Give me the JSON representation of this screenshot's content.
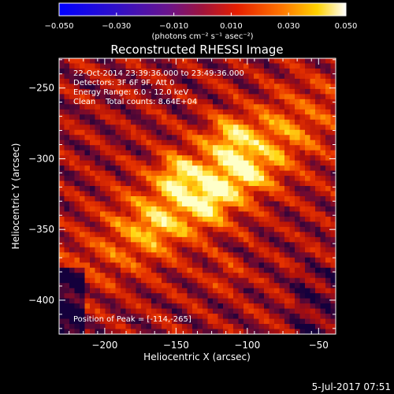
{
  "chart_data": {
    "type": "heatmap",
    "title": "Reconstructed RHESSI Image",
    "xlabel": "Heliocentric X (arcsec)",
    "ylabel": "Heliocentric Y (arcsec)",
    "xlim": [
      -232,
      -38
    ],
    "ylim": [
      -424,
      -229
    ],
    "x_ticks": [
      -200,
      -150,
      -100,
      -50
    ],
    "y_ticks": [
      -250,
      -300,
      -350,
      -400
    ],
    "x_tick_labels": [
      "−200",
      "−150",
      "−100",
      "−50"
    ],
    "y_tick_labels": [
      "−250",
      "−300",
      "−350",
      "−400"
    ],
    "colorbar": {
      "range": [
        -0.05,
        0.05
      ],
      "ticks": [
        -0.05,
        -0.03,
        -0.01,
        0.01,
        0.03,
        0.05
      ],
      "tick_labels": [
        "−0.050",
        "−0.030",
        "−0.010",
        "0.010",
        "0.030",
        "0.050"
      ],
      "unit_label": "(photons cm⁻² s⁻¹ asec⁻²)",
      "colormap": "blue-purple-red-orange-yellow-white"
    },
    "annotations": [
      "22-Oct-2014 23:39:36.000 to 23:49:36.000",
      "Detectors: 3F 6F 9F, Att 0",
      "Energy Range: 6.0 - 12.0 keV",
      "Clean    Total counts: 8.64E+04"
    ],
    "peak_label": "Position of Peak = [-114,-265]",
    "peak": {
      "x": -114,
      "y": -265
    },
    "grid": false
  },
  "footer": {
    "date": "5-Jul-2017 07:51"
  }
}
